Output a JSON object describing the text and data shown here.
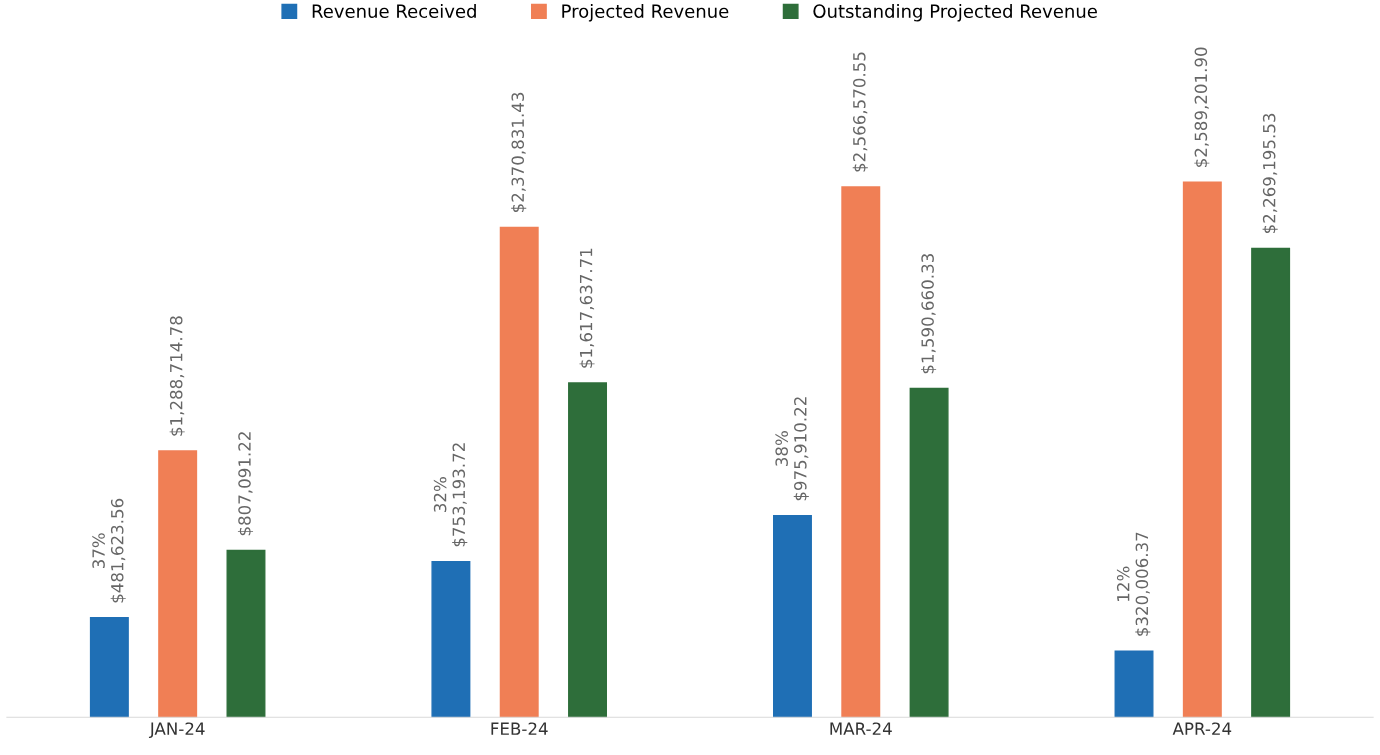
{
  "chart_data": {
    "type": "bar",
    "categories": [
      "JAN-24",
      "FEB-24",
      "MAR-24",
      "APR-24"
    ],
    "series": [
      {
        "name": "Revenue Received",
        "color": "#1f6fb5",
        "values": [
          481623.56,
          753193.72,
          975910.22,
          320006.37
        ],
        "value_labels": [
          "37%\n$481,623.56",
          "32%\n$753,193.72",
          "38%\n$975,910.22",
          "12%\n$320,006.37"
        ]
      },
      {
        "name": "Projected Revenue",
        "color": "#f07f55",
        "values": [
          1288714.78,
          2370831.43,
          2566570.55,
          2589201.9
        ],
        "value_labels": [
          "$1,288,714.78",
          "$2,370,831.43",
          "$2,566,570.55",
          "$2,589,201.90"
        ]
      },
      {
        "name": "Outstanding Projected Revenue",
        "color": "#2e6e3a",
        "values": [
          807091.22,
          1617637.71,
          1590660.33,
          2269195.53
        ],
        "value_labels": [
          "$807,091.22",
          "$1,617,637.71",
          "$1,590,660.33",
          "$2,269,195.53"
        ]
      }
    ],
    "legend": "top",
    "grid": false,
    "tick_labels": "x"
  }
}
